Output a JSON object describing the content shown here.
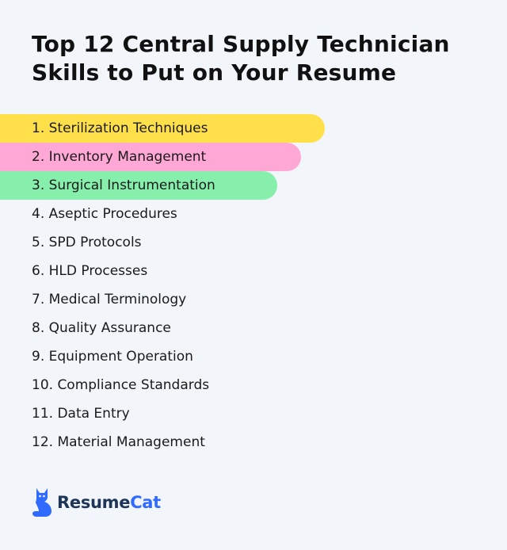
{
  "title": {
    "line1": "Top 12 Central Supply Technician",
    "line2": "Skills to Put on Your Resume"
  },
  "skills": [
    {
      "label": "1. Sterilization Techniques",
      "highlight": "#ffe04a"
    },
    {
      "label": "2. Inventory Management",
      "highlight": "#ffa8d5"
    },
    {
      "label": "3. Surgical Instrumentation",
      "highlight": "#86efac"
    },
    {
      "label": "4. Aseptic Procedures"
    },
    {
      "label": "5. SPD Protocols"
    },
    {
      "label": "6. HLD Processes"
    },
    {
      "label": "7. Medical Terminology"
    },
    {
      "label": "8. Quality Assurance"
    },
    {
      "label": "9. Equipment Operation"
    },
    {
      "label": "10. Compliance Standards"
    },
    {
      "label": "11. Data Entry"
    },
    {
      "label": "12. Material Management"
    }
  ],
  "brand": {
    "name_part1": "Resume",
    "name_part2": "Cat",
    "icon": "cat-icon",
    "colors": {
      "dark": "#1d3557",
      "accent": "#2f6bff"
    }
  }
}
